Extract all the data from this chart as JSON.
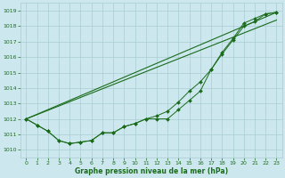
{
  "x": [
    0,
    1,
    2,
    3,
    4,
    5,
    6,
    7,
    8,
    9,
    10,
    11,
    12,
    13,
    14,
    15,
    16,
    17,
    18,
    19,
    20,
    21,
    22,
    23
  ],
  "line_straight1": [
    [
      0,
      1012
    ],
    [
      23,
      1018.9
    ]
  ],
  "line_straight2": [
    [
      0,
      1012
    ],
    [
      23,
      1018.4
    ]
  ],
  "line_markers1": [
    1012,
    1011.6,
    1011.2,
    1010.6,
    1010.4,
    1010.5,
    1010.6,
    1011.1,
    1011.1,
    1011.5,
    1011.7,
    1012,
    1012,
    1012,
    1012.6,
    1013.2,
    1013.8,
    1015.2,
    1016.2,
    1017.1,
    1018.0,
    1018.3,
    1018.8,
    1018.9
  ],
  "line_markers2": [
    1012,
    1011.6,
    1011.2,
    1010.6,
    1010.4,
    1010.5,
    1010.6,
    1011.1,
    1011.1,
    1011.5,
    1011.7,
    1012,
    1012.2,
    1012.5,
    1013.1,
    1013.8,
    1014.4,
    1015.2,
    1016.3,
    1017.2,
    1018.2,
    1018.5,
    1018.8,
    1018.9
  ],
  "bg_color": "#cce8ee",
  "grid_color": "#aaccd4",
  "line_color": "#1a6b1a",
  "xlabel": "Graphe pression niveau de la mer (hPa)",
  "ylim": [
    1009.5,
    1019.5
  ],
  "xlim": [
    -0.5,
    23.5
  ],
  "yticks": [
    1010,
    1011,
    1012,
    1013,
    1014,
    1015,
    1016,
    1017,
    1018,
    1019
  ],
  "xticks": [
    0,
    1,
    2,
    3,
    4,
    5,
    6,
    7,
    8,
    9,
    10,
    11,
    12,
    13,
    14,
    15,
    16,
    17,
    18,
    19,
    20,
    21,
    22,
    23
  ]
}
